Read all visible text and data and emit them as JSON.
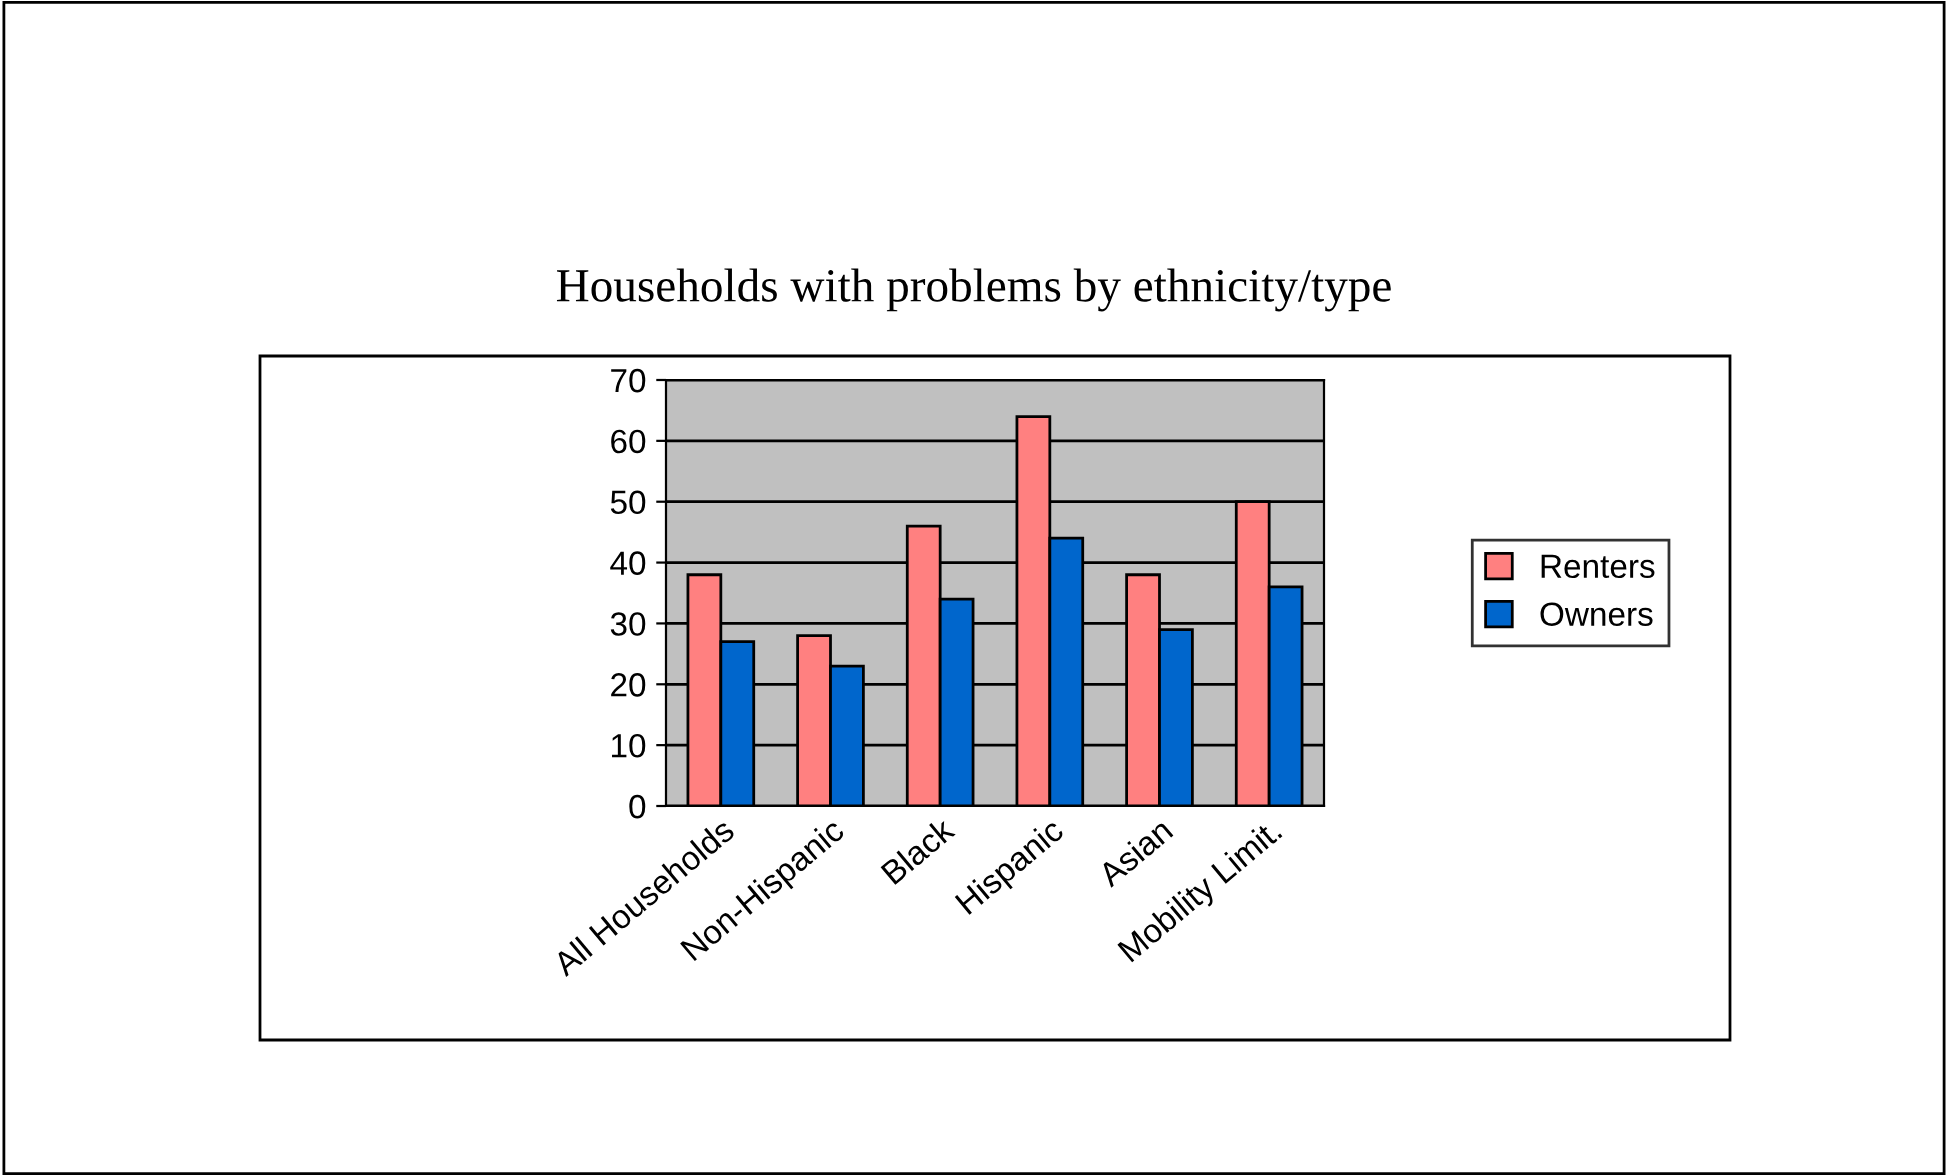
{
  "chart_data": {
    "type": "bar",
    "title": "Households with problems by ethnicity/type",
    "categories": [
      "All Households",
      "Non-Hispanic",
      "Black",
      "Hispanic",
      "Asian",
      "Mobility Limit."
    ],
    "series": [
      {
        "name": "Renters",
        "color": "#ff8080",
        "values": [
          38,
          28,
          46,
          64,
          38,
          50
        ]
      },
      {
        "name": "Owners",
        "color": "#0066cc",
        "values": [
          27,
          23,
          34,
          44,
          29,
          36
        ]
      }
    ],
    "ylim": [
      0,
      70
    ],
    "yticks": [
      0,
      10,
      20,
      30,
      40,
      50,
      60,
      70
    ],
    "grid": "y",
    "legend": "right"
  }
}
